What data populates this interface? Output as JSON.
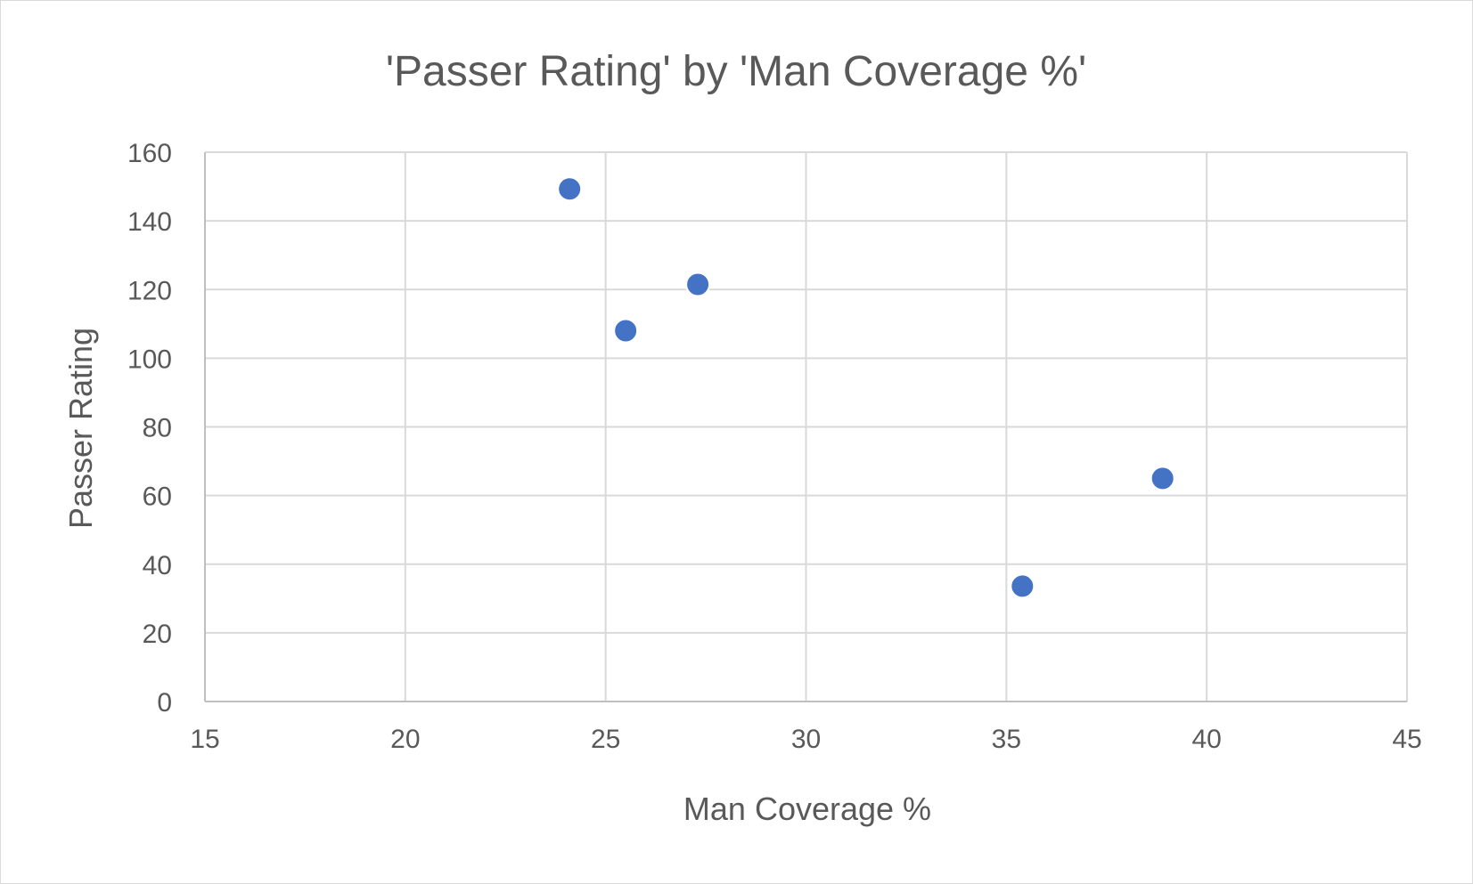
{
  "chart_data": {
    "type": "scatter",
    "title": "'Passer Rating' by 'Man Coverage %'",
    "xlabel": "Man Coverage %",
    "ylabel": "Passer Rating",
    "xlim": [
      15,
      45
    ],
    "ylim": [
      0,
      160
    ],
    "x_ticks": [
      15,
      20,
      25,
      30,
      35,
      40,
      45
    ],
    "y_ticks": [
      0,
      20,
      40,
      60,
      80,
      100,
      120,
      140,
      160
    ],
    "grid": true,
    "legend": "none",
    "series": [
      {
        "color": "#4472c4",
        "points": [
          {
            "x": 24.1,
            "y": 149.3
          },
          {
            "x": 25.5,
            "y": 108.0
          },
          {
            "x": 27.3,
            "y": 121.5
          },
          {
            "x": 35.4,
            "y": 33.6
          },
          {
            "x": 38.9,
            "y": 65.0
          }
        ]
      }
    ]
  }
}
